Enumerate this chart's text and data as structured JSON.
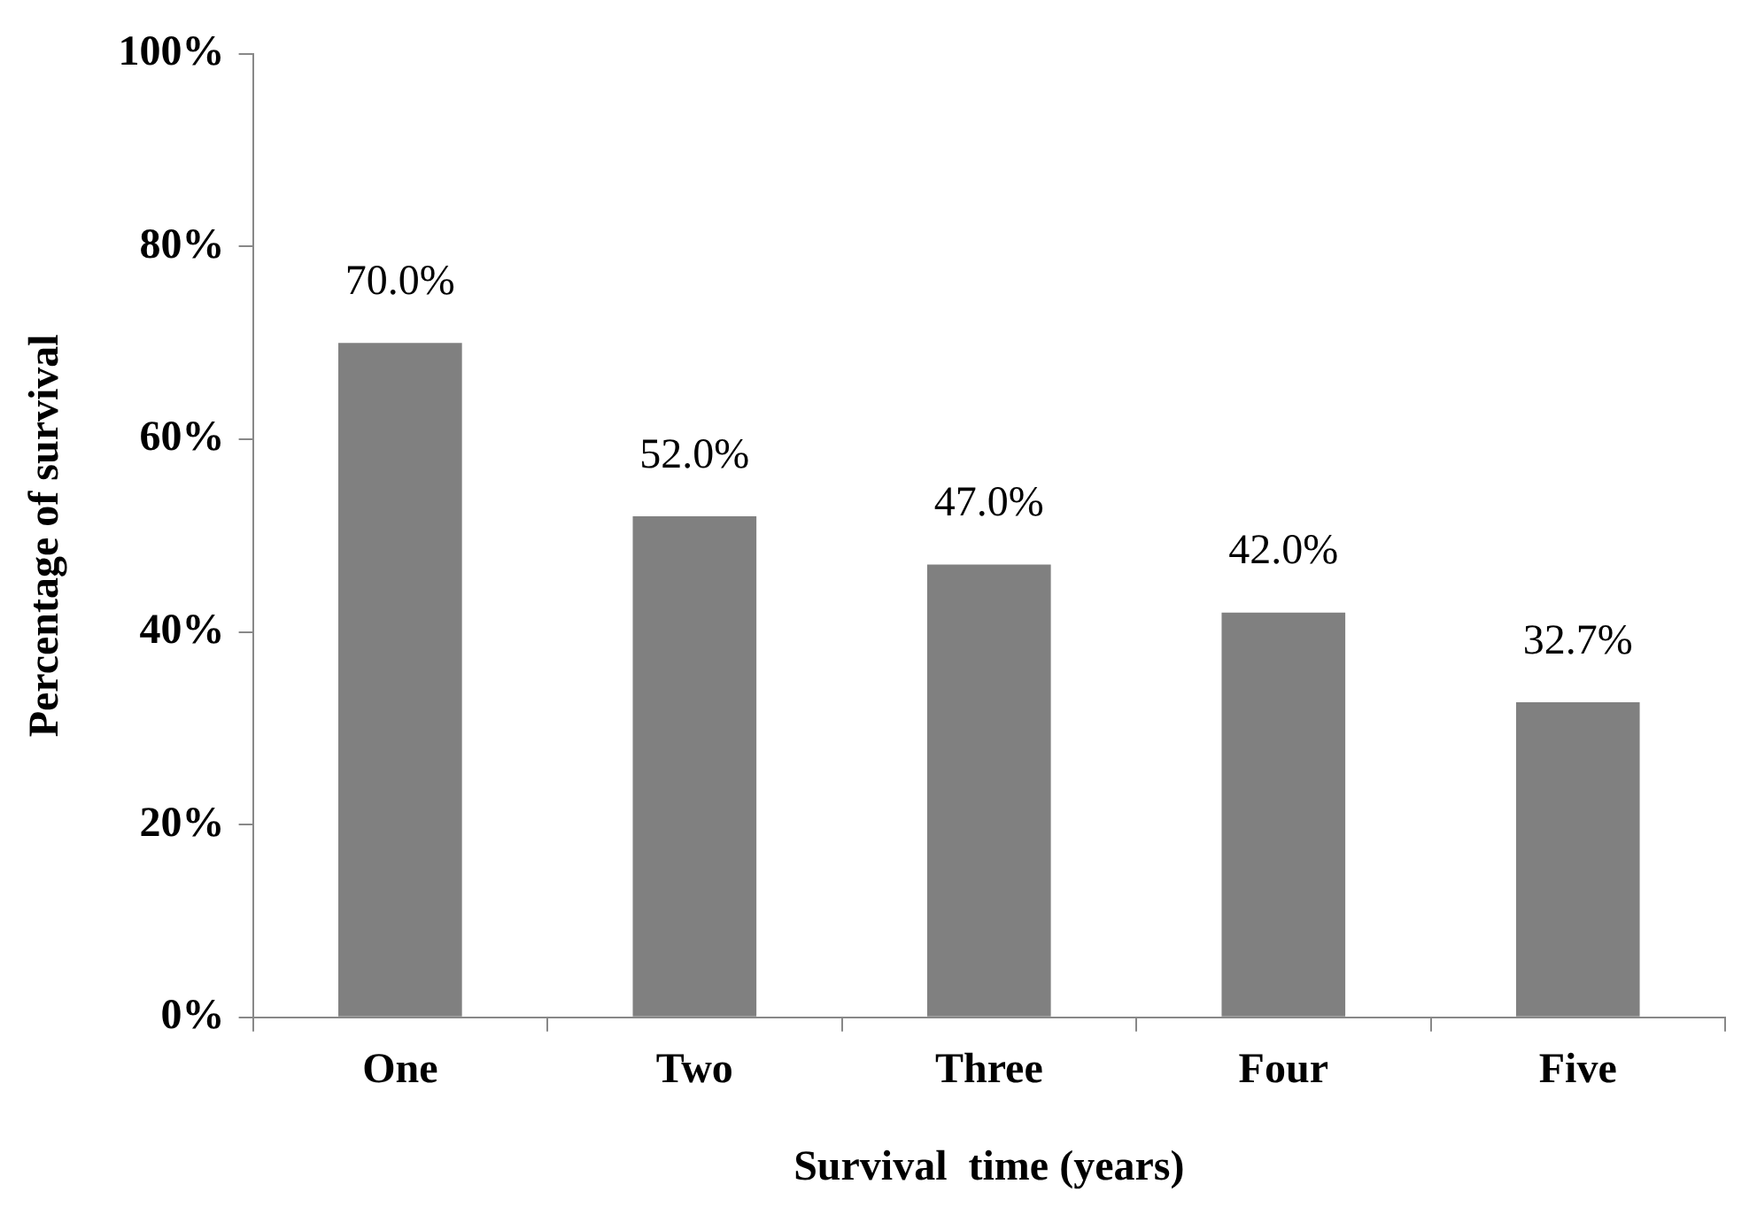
{
  "chart_data": {
    "type": "bar",
    "xlabel": "Survival  time (years)",
    "ylabel": "Percentage of survival",
    "categories": [
      "One",
      "Two",
      "Three",
      "Four",
      "Five"
    ],
    "values": [
      70.0,
      52.0,
      47.0,
      42.0,
      32.7
    ],
    "value_labels": [
      "70.0%",
      "52.0%",
      "47.0%",
      "42.0%",
      "32.7%"
    ],
    "color": "#808080",
    "ylim": [
      0,
      100
    ],
    "yticks": [
      {
        "value": 0,
        "label": "0%"
      },
      {
        "value": 20,
        "label": "20%"
      },
      {
        "value": 40,
        "label": "40%"
      },
      {
        "value": 60,
        "label": "60%"
      },
      {
        "value": 80,
        "label": "80%"
      },
      {
        "value": 100,
        "label": "100%"
      }
    ],
    "grid": false,
    "legend": false
  }
}
